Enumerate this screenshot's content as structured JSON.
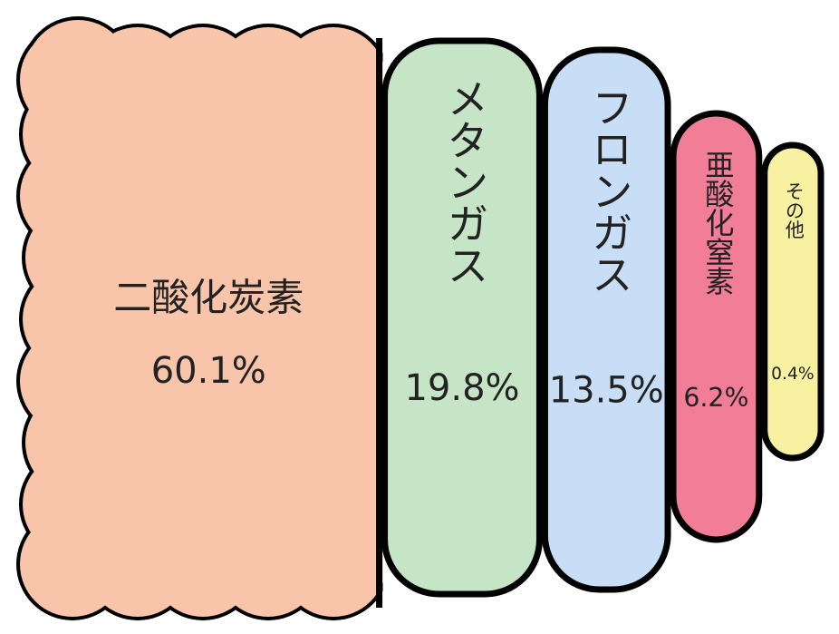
{
  "chart_data": {
    "type": "treemap",
    "categories": [
      "二酸化炭素",
      "メタンガス",
      "フロンガス",
      "亜酸化窒素",
      "その他"
    ],
    "values": [
      60.1,
      19.8,
      13.5,
      6.2,
      0.4
    ],
    "value_labels": [
      "60.1%",
      "19.8%",
      "13.5%",
      "6.2%",
      "0.4%"
    ],
    "colors": [
      "#f9c5aa",
      "#c6e4c6",
      "#c8def6",
      "#f27d97",
      "#f8f1a2"
    ]
  }
}
